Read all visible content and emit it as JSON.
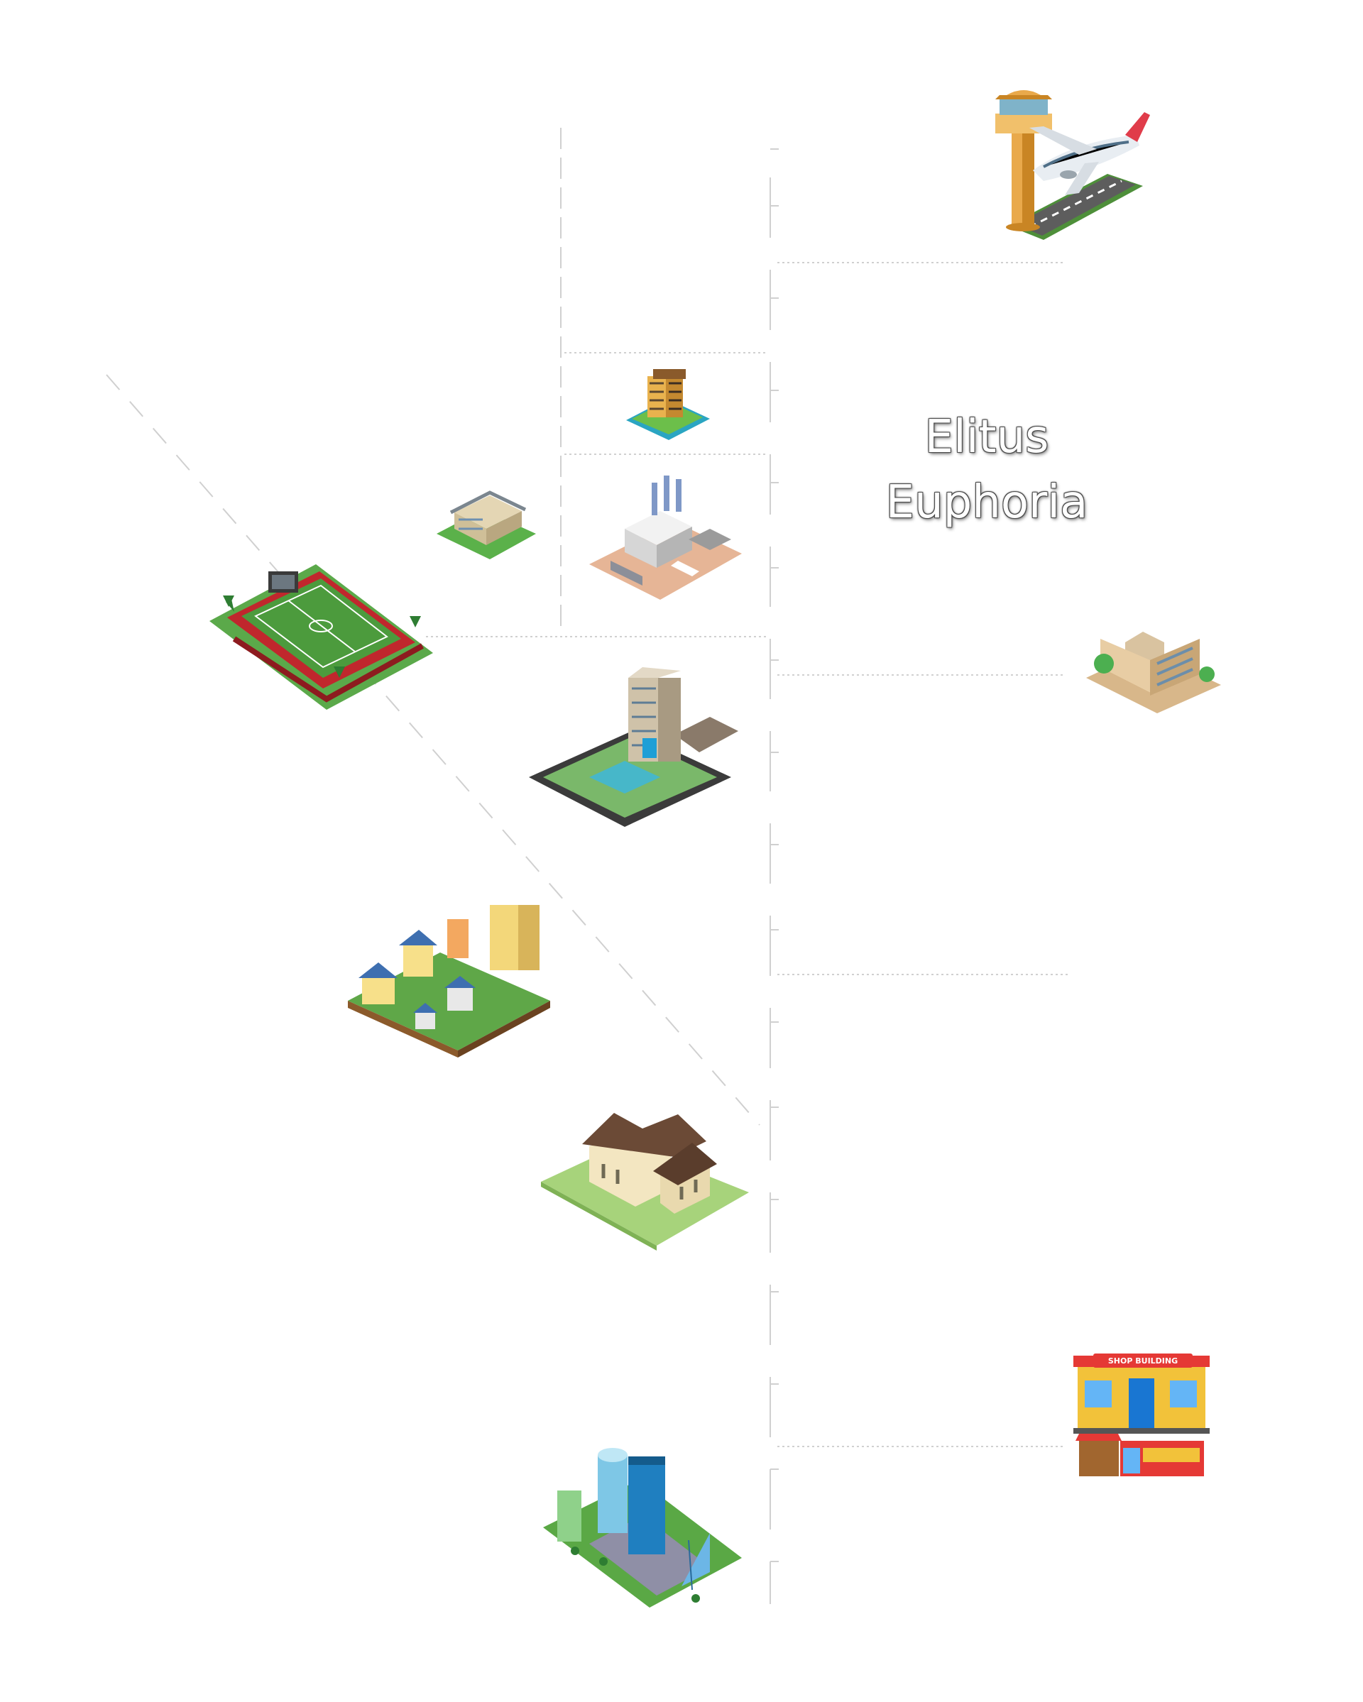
{
  "map": {
    "title_line1": "Elitus",
    "title_line2": "Euphoria",
    "shop_sign": "SHOP BUILDING",
    "landmarks": [
      {
        "name": "airport",
        "icon": "airport-icon"
      },
      {
        "name": "apartment-block",
        "icon": "apartment-icon"
      },
      {
        "name": "factory",
        "icon": "factory-icon"
      },
      {
        "name": "school",
        "icon": "school-icon"
      },
      {
        "name": "stadium",
        "icon": "stadium-icon"
      },
      {
        "name": "office-building",
        "icon": "office-building-icon"
      },
      {
        "name": "tower-complex",
        "icon": "tower-complex-icon"
      },
      {
        "name": "residential-area",
        "icon": "residential-area-icon"
      },
      {
        "name": "villa",
        "icon": "villa-icon"
      },
      {
        "name": "shop",
        "icon": "shop-icon"
      },
      {
        "name": "business-district",
        "icon": "business-district-icon"
      }
    ]
  },
  "colors": {
    "road_line": "#cfcfcf",
    "grass": "#6ab04c",
    "title_outline": "#444444"
  }
}
